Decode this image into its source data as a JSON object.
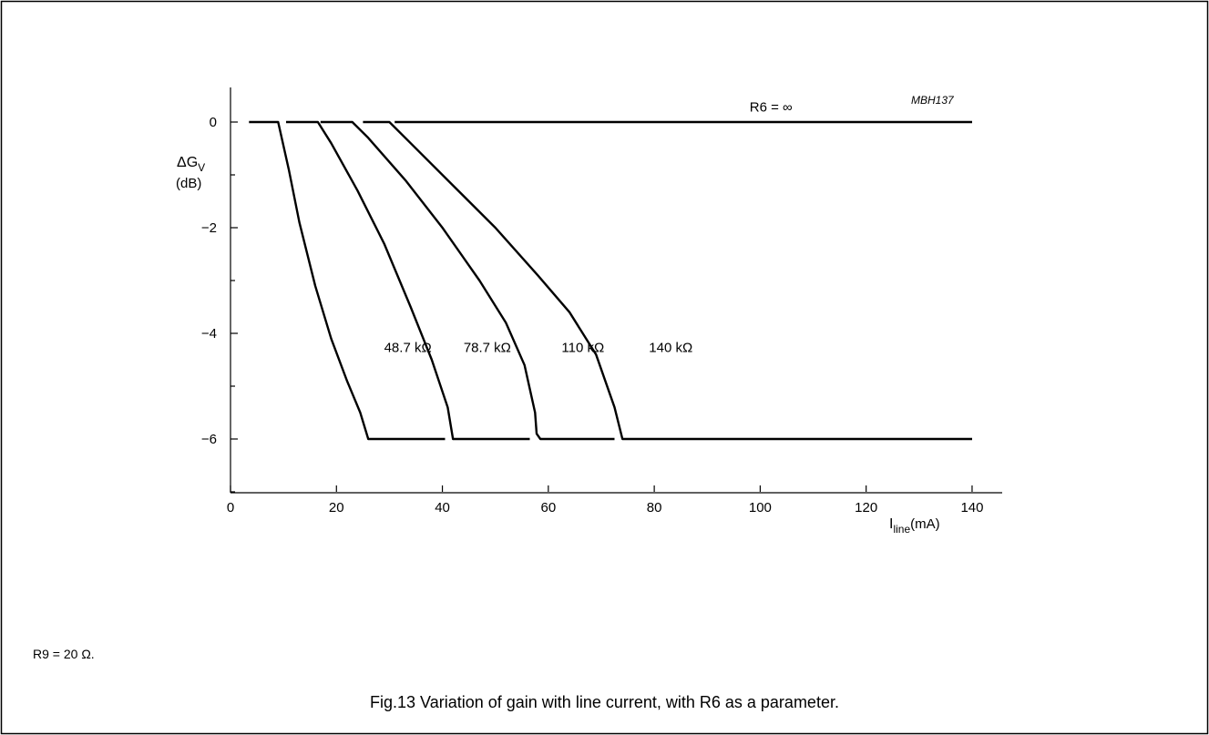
{
  "chart_data": {
    "type": "line",
    "figure_code": "MBH137",
    "ylabel": {
      "symbol": "ΔG",
      "subscript": "V",
      "unit": "(dB)"
    },
    "xlabel": {
      "symbol": "I",
      "subscript": "line",
      "unit": "(mA)"
    },
    "xlim": [
      0,
      145
    ],
    "ylim": [
      -7,
      0.7
    ],
    "x_ticks": [
      0,
      20,
      40,
      60,
      80,
      100,
      120,
      140
    ],
    "x_tick_labels": [
      "0",
      "20",
      "40",
      "60",
      "80",
      "100",
      "120",
      "140"
    ],
    "y_ticks": [
      0,
      -2,
      -4,
      -6
    ],
    "y_tick_labels": [
      "0",
      "−2",
      "−4",
      "−6"
    ],
    "y_minor_ticks": [
      -1,
      -3,
      -5,
      -7
    ],
    "series": [
      {
        "name": "R6 = ∞",
        "label_at": [
          98,
          0.2
        ],
        "points": [
          [
            31,
            0
          ],
          [
            140,
            0
          ]
        ]
      },
      {
        "name": "48.7 kΩ",
        "label_at": [
          29,
          -4.35
        ],
        "points": [
          [
            3.5,
            0
          ],
          [
            9,
            0
          ],
          [
            11,
            -0.9
          ],
          [
            13,
            -1.9
          ],
          [
            16,
            -3.1
          ],
          [
            19,
            -4.1
          ],
          [
            22,
            -4.9
          ],
          [
            24.5,
            -5.5
          ],
          [
            26,
            -6
          ],
          [
            40.5,
            -6
          ]
        ]
      },
      {
        "name": "78.7 kΩ",
        "label_at": [
          44,
          -4.35
        ],
        "points": [
          [
            10.5,
            0
          ],
          [
            16.5,
            0
          ],
          [
            19,
            -0.4
          ],
          [
            24,
            -1.3
          ],
          [
            29,
            -2.3
          ],
          [
            34,
            -3.5
          ],
          [
            38,
            -4.5
          ],
          [
            41,
            -5.4
          ],
          [
            42,
            -6
          ],
          [
            56.5,
            -6
          ]
        ]
      },
      {
        "name": "110 kΩ",
        "label_at": [
          62.5,
          -4.35
        ],
        "points": [
          [
            17,
            0
          ],
          [
            23,
            0
          ],
          [
            26,
            -0.3
          ],
          [
            33,
            -1.1
          ],
          [
            40,
            -2.0
          ],
          [
            47,
            -3.0
          ],
          [
            52,
            -3.8
          ],
          [
            55.5,
            -4.6
          ],
          [
            57.5,
            -5.5
          ],
          [
            57.8,
            -5.9
          ],
          [
            58.5,
            -6
          ],
          [
            72.5,
            -6
          ]
        ]
      },
      {
        "name": "140 kΩ",
        "label_at": [
          79,
          -4.35
        ],
        "points": [
          [
            25,
            0
          ],
          [
            30,
            0
          ],
          [
            34,
            -0.4
          ],
          [
            42,
            -1.2
          ],
          [
            50,
            -2.0
          ],
          [
            58,
            -2.9
          ],
          [
            64,
            -3.6
          ],
          [
            69,
            -4.4
          ],
          [
            72.5,
            -5.4
          ],
          [
            74,
            -6
          ],
          [
            140,
            -6
          ]
        ]
      }
    ]
  },
  "note": "R9 = 20 Ω.",
  "caption": "Fig.13  Variation of gain with line current, with R6 as a parameter."
}
